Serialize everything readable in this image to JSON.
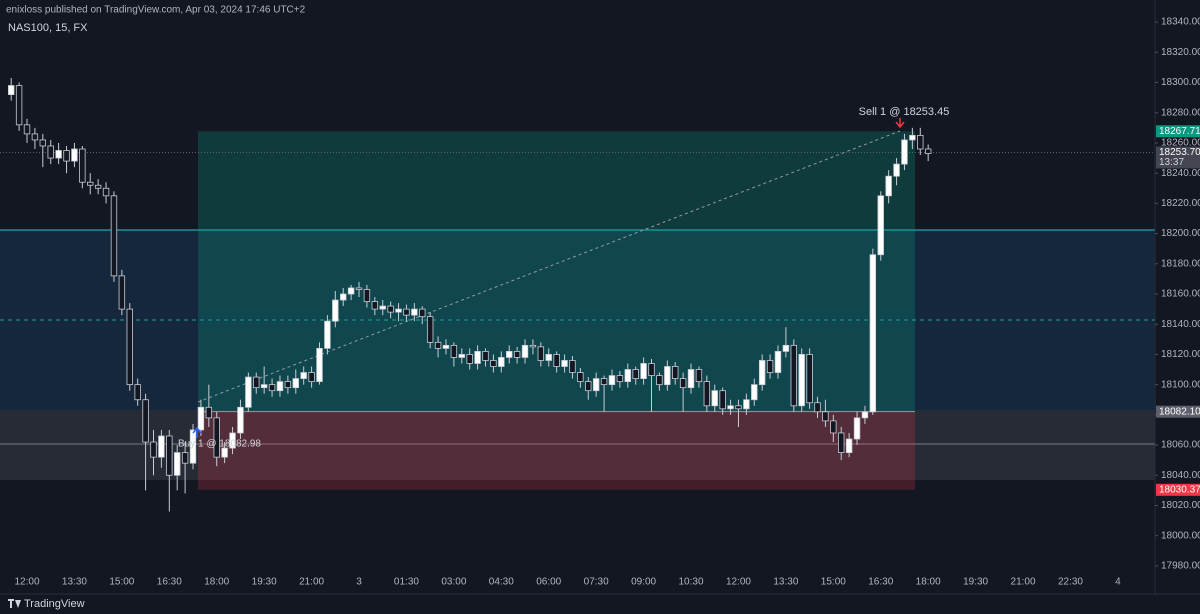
{
  "header": {
    "publisher": "enixloss published on TradingView.com, Apr 03, 2024 17:46 UTC+2",
    "symbol": "NAS100, 15, FX"
  },
  "footer": {
    "brand": "TradingView"
  },
  "chart_data": {
    "type": "candlestick",
    "up_color": "#ffffff",
    "down_color": "#131722",
    "wick_color": "#c9ccd4",
    "ylim": [
      17970,
      18350
    ],
    "yticks": [
      {
        "value": 18340,
        "label": "18340.00"
      },
      {
        "value": 18320,
        "label": "18320.00"
      },
      {
        "value": 18300,
        "label": "18300.00"
      },
      {
        "value": 18280,
        "label": "18280.00"
      },
      {
        "value": 18260,
        "label": "18260.00"
      },
      {
        "value": 18240,
        "label": "18240.00"
      },
      {
        "value": 18220,
        "label": "18220.00"
      },
      {
        "value": 18200,
        "label": "18200.00"
      },
      {
        "value": 18180,
        "label": "18180.00"
      },
      {
        "value": 18160,
        "label": "18160.00"
      },
      {
        "value": 18140,
        "label": "18140.00"
      },
      {
        "value": 18120,
        "label": "18120.00"
      },
      {
        "value": 18100,
        "label": "18100.00"
      },
      {
        "value": 18080,
        "label": "18080.00"
      },
      {
        "value": 18060,
        "label": "18060.00"
      },
      {
        "value": 18040,
        "label": "18040.00"
      },
      {
        "value": 18020,
        "label": "18020.00"
      },
      {
        "value": 18000,
        "label": "18000.00"
      },
      {
        "value": 17980,
        "label": "17980.00"
      }
    ],
    "x_labels": [
      "12:00",
      "13:30",
      "15:00",
      "16:30",
      "18:00",
      "19:30",
      "21:00",
      "3",
      "01:30",
      "03:00",
      "04:30",
      "06:00",
      "07:30",
      "09:00",
      "10:30",
      "12:00",
      "13:30",
      "15:00",
      "16:30",
      "18:00",
      "19:30",
      "21:00",
      "22:30",
      "4"
    ],
    "candles": [
      [
        18292,
        18303,
        18288,
        18298
      ],
      [
        18298,
        18300,
        18268,
        18272
      ],
      [
        18272,
        18276,
        18260,
        18266
      ],
      [
        18266,
        18270,
        18256,
        18262
      ],
      [
        18262,
        18266,
        18244,
        18258
      ],
      [
        18258,
        18262,
        18246,
        18250
      ],
      [
        18250,
        18260,
        18246,
        18255
      ],
      [
        18255,
        18258,
        18240,
        18248
      ],
      [
        18248,
        18260,
        18244,
        18256
      ],
      [
        18256,
        18258,
        18230,
        18234
      ],
      [
        18234,
        18240,
        18226,
        18232
      ],
      [
        18232,
        18236,
        18226,
        18230
      ],
      [
        18230,
        18234,
        18220,
        18225
      ],
      [
        18225,
        18228,
        18168,
        18172
      ],
      [
        18172,
        18176,
        18146,
        18150
      ],
      [
        18150,
        18154,
        18096,
        18100
      ],
      [
        18100,
        18104,
        18086,
        18090
      ],
      [
        18090,
        18094,
        18030,
        18062
      ],
      [
        18062,
        18070,
        18040,
        18052
      ],
      [
        18052,
        18070,
        18045,
        18066
      ],
      [
        18066,
        18070,
        18016,
        18040
      ],
      [
        18040,
        18060,
        18030,
        18055
      ],
      [
        18055,
        18062,
        18028,
        18048
      ],
      [
        18048,
        18074,
        18044,
        18070
      ],
      [
        18070,
        18090,
        18066,
        18085
      ],
      [
        18085,
        18100,
        18072,
        18078
      ],
      [
        18078,
        18082,
        18046,
        18052
      ],
      [
        18052,
        18062,
        18048,
        18058
      ],
      [
        18058,
        18072,
        18054,
        18068
      ],
      [
        18068,
        18090,
        18064,
        18085
      ],
      [
        18085,
        18108,
        18082,
        18105
      ],
      [
        18105,
        18108,
        18094,
        18098
      ],
      [
        18098,
        18112,
        18094,
        18100
      ],
      [
        18100,
        18104,
        18092,
        18096
      ],
      [
        18096,
        18106,
        18092,
        18102
      ],
      [
        18102,
        18106,
        18094,
        18098
      ],
      [
        18098,
        18110,
        18094,
        18104
      ],
      [
        18104,
        18112,
        18100,
        18108
      ],
      [
        18108,
        18112,
        18098,
        18102
      ],
      [
        18102,
        18128,
        18100,
        18124
      ],
      [
        18124,
        18146,
        18120,
        18142
      ],
      [
        18142,
        18162,
        18138,
        18156
      ],
      [
        18156,
        18164,
        18152,
        18160
      ],
      [
        18160,
        18166,
        18156,
        18164
      ],
      [
        18164,
        18168,
        18158,
        18163
      ],
      [
        18163,
        18166,
        18151,
        18155
      ],
      [
        18155,
        18158,
        18146,
        18150
      ],
      [
        18150,
        18156,
        18146,
        18152
      ],
      [
        18152,
        18155,
        18144,
        18148
      ],
      [
        18148,
        18154,
        18142,
        18150
      ],
      [
        18150,
        18153,
        18142,
        18146
      ],
      [
        18146,
        18154,
        18142,
        18150
      ],
      [
        18150,
        18152,
        18140,
        18145
      ],
      [
        18145,
        18148,
        18124,
        18128
      ],
      [
        18128,
        18132,
        18118,
        18124
      ],
      [
        18124,
        18130,
        18120,
        18126
      ],
      [
        18126,
        18128,
        18112,
        18118
      ],
      [
        18118,
        18124,
        18114,
        18120
      ],
      [
        18120,
        18124,
        18110,
        18114
      ],
      [
        18114,
        18126,
        18110,
        18122
      ],
      [
        18122,
        18124,
        18112,
        18116
      ],
      [
        18116,
        18120,
        18108,
        18112
      ],
      [
        18112,
        18122,
        18108,
        18118
      ],
      [
        18118,
        18126,
        18114,
        18122
      ],
      [
        18122,
        18125,
        18114,
        18118
      ],
      [
        18118,
        18130,
        18114,
        18126
      ],
      [
        18126,
        18130,
        18120,
        18125
      ],
      [
        18125,
        18128,
        18112,
        18116
      ],
      [
        18116,
        18124,
        18112,
        18120
      ],
      [
        18120,
        18122,
        18108,
        18112
      ],
      [
        18112,
        18120,
        18108,
        18116
      ],
      [
        18116,
        18119,
        18104,
        18108
      ],
      [
        18108,
        18111,
        18098,
        18102
      ],
      [
        18102,
        18105,
        18090,
        18096
      ],
      [
        18096,
        18108,
        18092,
        18104
      ],
      [
        18104,
        18106,
        18082,
        18100
      ],
      [
        18100,
        18110,
        18096,
        18106
      ],
      [
        18106,
        18109,
        18098,
        18102
      ],
      [
        18102,
        18114,
        18098,
        18110
      ],
      [
        18110,
        18112,
        18100,
        18104
      ],
      [
        18104,
        18118,
        18100,
        18114
      ],
      [
        18114,
        18117,
        18082,
        18106
      ],
      [
        18106,
        18108,
        18096,
        18100
      ],
      [
        18100,
        18116,
        18096,
        18112
      ],
      [
        18112,
        18115,
        18100,
        18104
      ],
      [
        18104,
        18108,
        18082,
        18098
      ],
      [
        18098,
        18114,
        18094,
        18110
      ],
      [
        18110,
        18112,
        18098,
        18102
      ],
      [
        18102,
        18106,
        18082,
        18086
      ],
      [
        18086,
        18100,
        18082,
        18096
      ],
      [
        18096,
        18098,
        18080,
        18084
      ],
      [
        18084,
        18090,
        18080,
        18086
      ],
      [
        18086,
        18090,
        18072,
        18084
      ],
      [
        18084,
        18094,
        18080,
        18090
      ],
      [
        18090,
        18104,
        18086,
        18100
      ],
      [
        18100,
        18120,
        18096,
        18116
      ],
      [
        18116,
        18120,
        18104,
        18108
      ],
      [
        18108,
        18126,
        18104,
        18122
      ],
      [
        18122,
        18138,
        18118,
        18126
      ],
      [
        18126,
        18130,
        18082,
        18086
      ],
      [
        18086,
        18124,
        18082,
        18120
      ],
      [
        18120,
        18124,
        18084,
        18088
      ],
      [
        18088,
        18092,
        18078,
        18082
      ],
      [
        18082,
        18090,
        18072,
        18076
      ],
      [
        18076,
        18080,
        18062,
        18068
      ],
      [
        18068,
        18072,
        18050,
        18055
      ],
      [
        18055,
        18068,
        18052,
        18064
      ],
      [
        18064,
        18082,
        18060,
        18078
      ],
      [
        18078,
        18086,
        18074,
        18082
      ],
      [
        18082,
        18190,
        18080,
        18186
      ],
      [
        18186,
        18228,
        18182,
        18225
      ],
      [
        18225,
        18242,
        18220,
        18238
      ],
      [
        18238,
        18250,
        18232,
        18246
      ],
      [
        18246,
        18266,
        18242,
        18262
      ],
      [
        18262,
        18270,
        18256,
        18265
      ],
      [
        18265,
        18270,
        18252,
        18256
      ],
      [
        18256,
        18259,
        18248,
        18253
      ]
    ],
    "position": {
      "target": 18267.71,
      "entry": {
        "value": 18082.1,
        "label": "18082.10"
      },
      "stop": 18030.37
    },
    "last_price": {
      "value": 18253.7,
      "label": "18253.70"
    },
    "countdown": "13:37",
    "annotations": {
      "sell": "Sell 1 @ 18253.45",
      "buy": "Buy 1 @ 18082.98"
    }
  }
}
